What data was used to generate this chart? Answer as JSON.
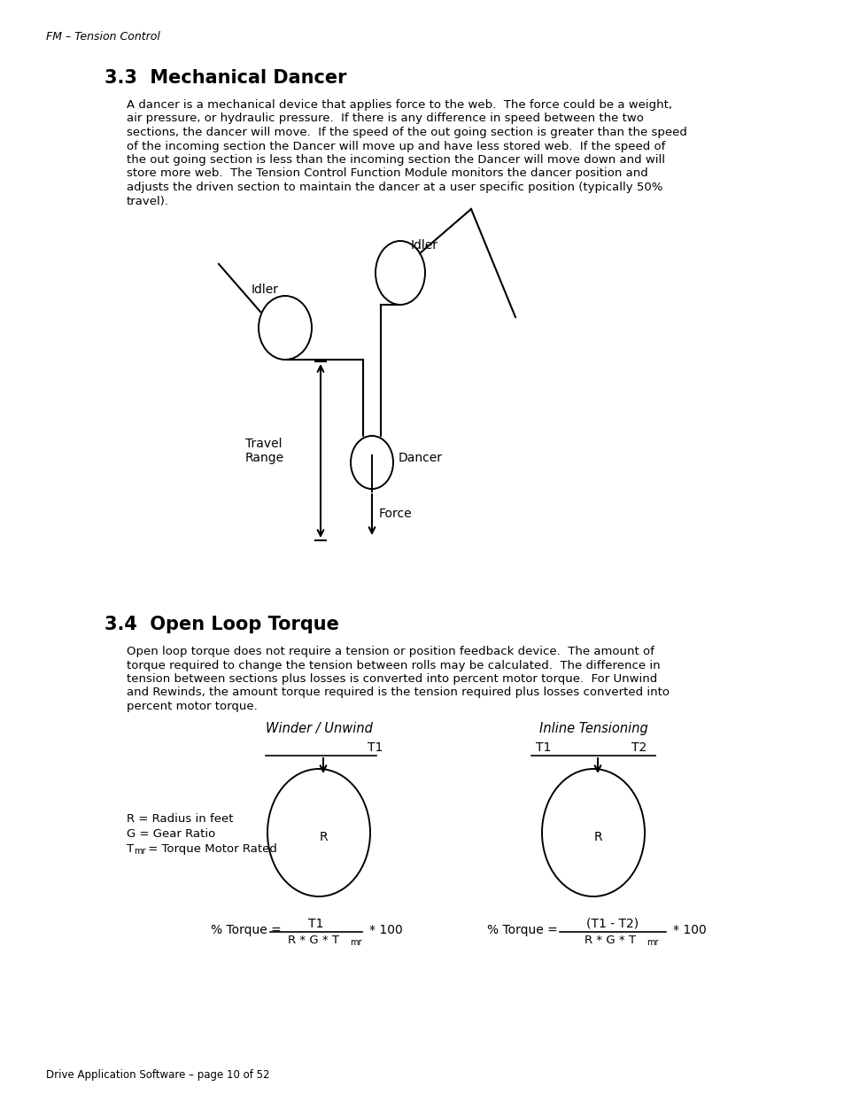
{
  "page_header": "FM – Tension Control",
  "section1_title": "3.3  Mechanical Dancer",
  "section1_body": [
    "A dancer is a mechanical device that applies force to the web.  The force could be a weight,",
    "air pressure, or hydraulic pressure.  If there is any difference in speed between the two",
    "sections, the dancer will move.  If the speed of the out going section is greater than the speed",
    "of the incoming section the Dancer will move up and have less stored web.  If the speed of",
    "the out going section is less than the incoming section the Dancer will move down and will",
    "store more web.  The Tension Control Function Module monitors the dancer position and",
    "adjusts the driven section to maintain the dancer at a user specific position (typically 50%",
    "travel)."
  ],
  "section2_title": "3.4  Open Loop Torque",
  "section2_body": [
    "Open loop torque does not require a tension or position feedback device.  The amount of",
    "torque required to change the tension between rolls may be calculated.  The difference in",
    "tension between sections plus losses is converted into percent motor torque.  For Unwind",
    "and Rewinds, the amount torque required is the tension required plus losses converted into",
    "percent motor torque."
  ],
  "winder_title": "Winder / Unwind",
  "inline_title": "Inline Tensioning",
  "footer": "Drive Application Software – page 10 of 52"
}
